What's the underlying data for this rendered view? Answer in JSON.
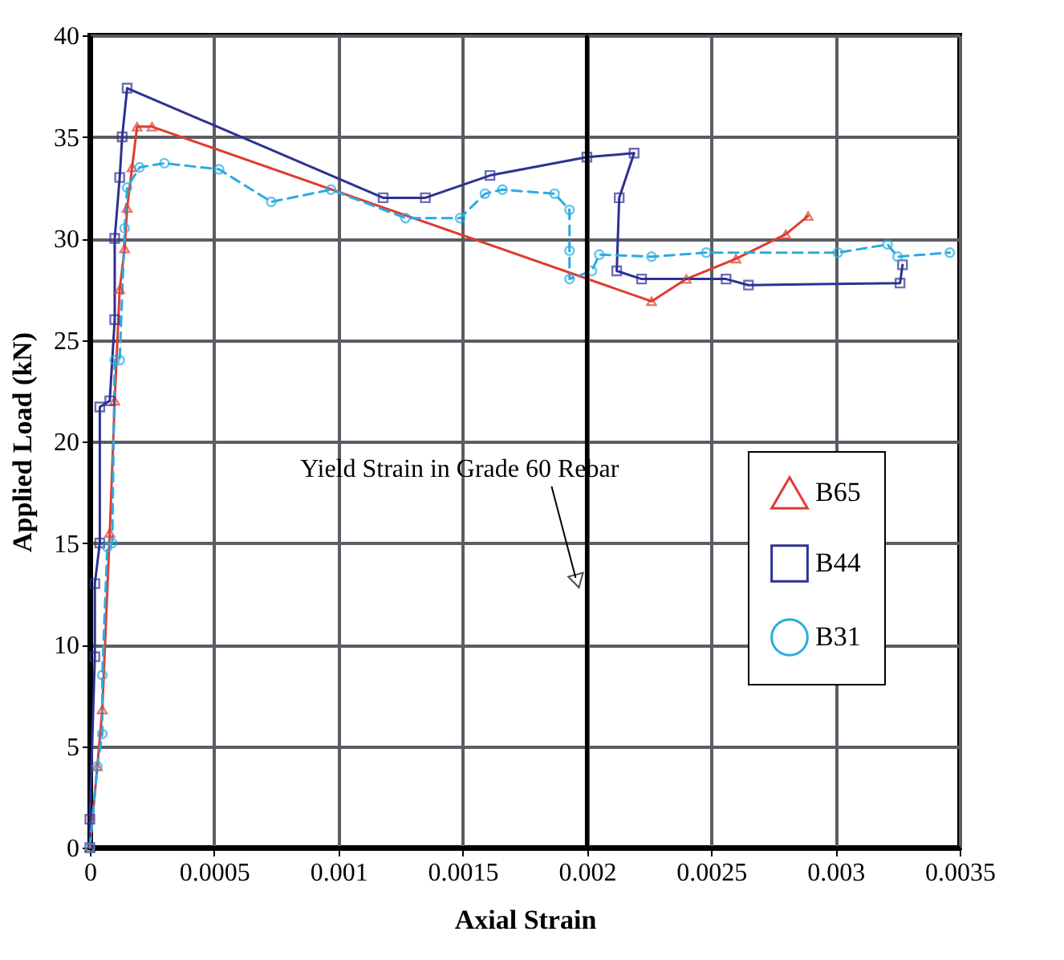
{
  "chart_data": {
    "type": "line",
    "xlabel": "Axial Strain",
    "ylabel": "Applied Load (kN)",
    "xlim": [
      0,
      0.0035
    ],
    "ylim": [
      0,
      40
    ],
    "xticks": [
      0,
      0.0005,
      0.001,
      0.0015,
      0.002,
      0.0025,
      0.003,
      0.0035
    ],
    "yticks": [
      0,
      5,
      10,
      15,
      20,
      25,
      30,
      35,
      40
    ],
    "grid": true,
    "legend": "right",
    "ref_lines": [
      {
        "axis": "x",
        "value": 0.002,
        "label": "Yield Strain in Grade 60 Rebar",
        "color": "#000000"
      }
    ],
    "series": [
      {
        "name": "B65",
        "color": "#e03c31",
        "marker": "triangle",
        "line_style": "solid",
        "x": [
          0,
          3e-05,
          5e-05,
          8e-05,
          0.0001,
          0.00012,
          0.00014,
          0.00015,
          0.00017,
          0.00019,
          0.00025,
          0.00226,
          0.0024,
          0.0026,
          0.0028,
          0.00289
        ],
        "values": [
          0,
          4,
          6.8,
          15.5,
          22,
          27.5,
          29.5,
          31.5,
          33.5,
          35.5,
          35.5,
          26.9,
          28,
          29,
          30.2,
          31.1
        ]
      },
      {
        "name": "B44",
        "color": "#2e3192",
        "marker": "square",
        "line_style": "solid",
        "x": [
          0,
          0,
          2e-05,
          2e-05,
          4e-05,
          4e-05,
          8e-05,
          0.0001,
          0.0001,
          0.00012,
          0.00013,
          0.00015,
          0.00118,
          0.00135,
          0.00161,
          0.002,
          0.00219,
          0.00213,
          0.00212,
          0.00222,
          0.00256,
          0.00265,
          0.00326,
          0.00327
        ],
        "values": [
          0,
          1.4,
          9.4,
          13,
          15,
          21.7,
          22,
          26,
          30,
          33,
          35,
          37.4,
          32,
          32,
          33.1,
          34,
          34.2,
          32,
          28.4,
          28,
          28,
          27.7,
          27.8,
          28.7
        ]
      },
      {
        "name": "B31",
        "color": "#29abe2",
        "marker": "circle",
        "line_style": "dashed",
        "x": [
          0,
          3e-05,
          5e-05,
          5e-05,
          7e-05,
          9e-05,
          0.0001,
          0.00012,
          0.00014,
          0.00015,
          0.0002,
          0.0003,
          0.00052,
          0.00073,
          0.00097,
          0.00127,
          0.00149,
          0.00159,
          0.00166,
          0.00187,
          0.00193,
          0.00193,
          0.00193,
          0.00202,
          0.00205,
          0.00226,
          0.00248,
          0.00301,
          0.00321,
          0.00325,
          0.00346
        ],
        "values": [
          0,
          4,
          5.6,
          8.5,
          14.8,
          15,
          24,
          24,
          30.5,
          32.5,
          33.5,
          33.7,
          33.4,
          31.8,
          32.4,
          31,
          31,
          32.2,
          32.4,
          32.2,
          31.4,
          29.4,
          28,
          28.4,
          29.2,
          29.1,
          29.3,
          29.3,
          29.7,
          29.1,
          29.3
        ]
      }
    ]
  }
}
